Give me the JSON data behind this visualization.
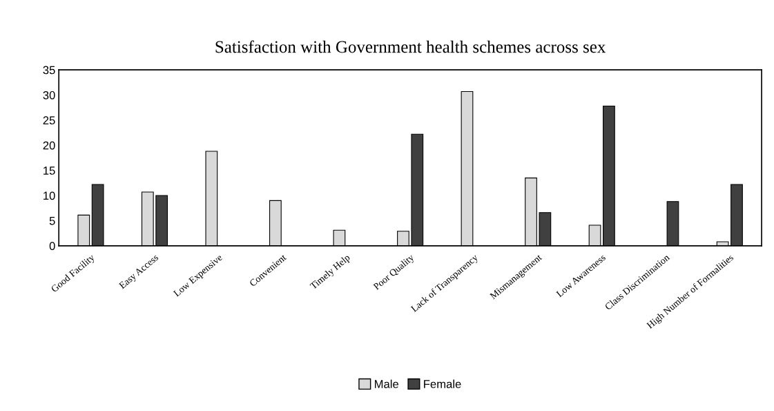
{
  "chart_data": {
    "type": "bar",
    "title": "Satisfaction with Government health schemes across sex",
    "categories": [
      "Good Facility",
      "Easy Access",
      "Low Expensive",
      "Convenient",
      "Timely Help",
      "Poor Quality",
      "Lack of Transparency",
      "Mismanagement",
      "Low Awareness",
      "Class Discrimination",
      "High Number of Formalities"
    ],
    "series": [
      {
        "name": "Male",
        "color": "#d9d9d9",
        "values": [
          6.1,
          10.7,
          18.8,
          9.0,
          3.1,
          2.9,
          30.7,
          13.5,
          4.1,
          null,
          0.8
        ]
      },
      {
        "name": "Female",
        "color": "#404040",
        "values": [
          12.2,
          10.0,
          null,
          null,
          null,
          22.2,
          null,
          6.6,
          27.8,
          8.8,
          12.2
        ]
      }
    ],
    "ylim": [
      0,
      35
    ],
    "yticks": [
      0,
      5,
      10,
      15,
      20,
      25,
      30,
      35
    ],
    "grid": false,
    "legend": "bottom"
  }
}
